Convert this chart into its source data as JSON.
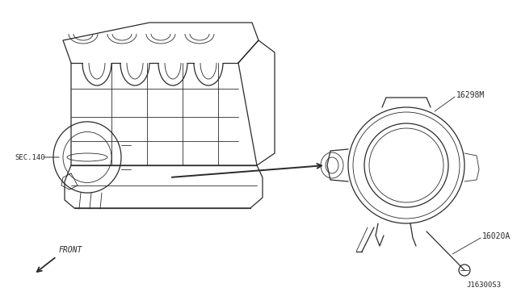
{
  "bg_color": "#ffffff",
  "line_color": "#2a2a2a",
  "label_sec140": "SEC.140",
  "label_16298M": "16298M",
  "label_16020A": "16020A",
  "label_front": "FRONT",
  "label_diagram_id": "J16300S3",
  "fig_width": 6.4,
  "fig_height": 3.72,
  "dpi": 100
}
